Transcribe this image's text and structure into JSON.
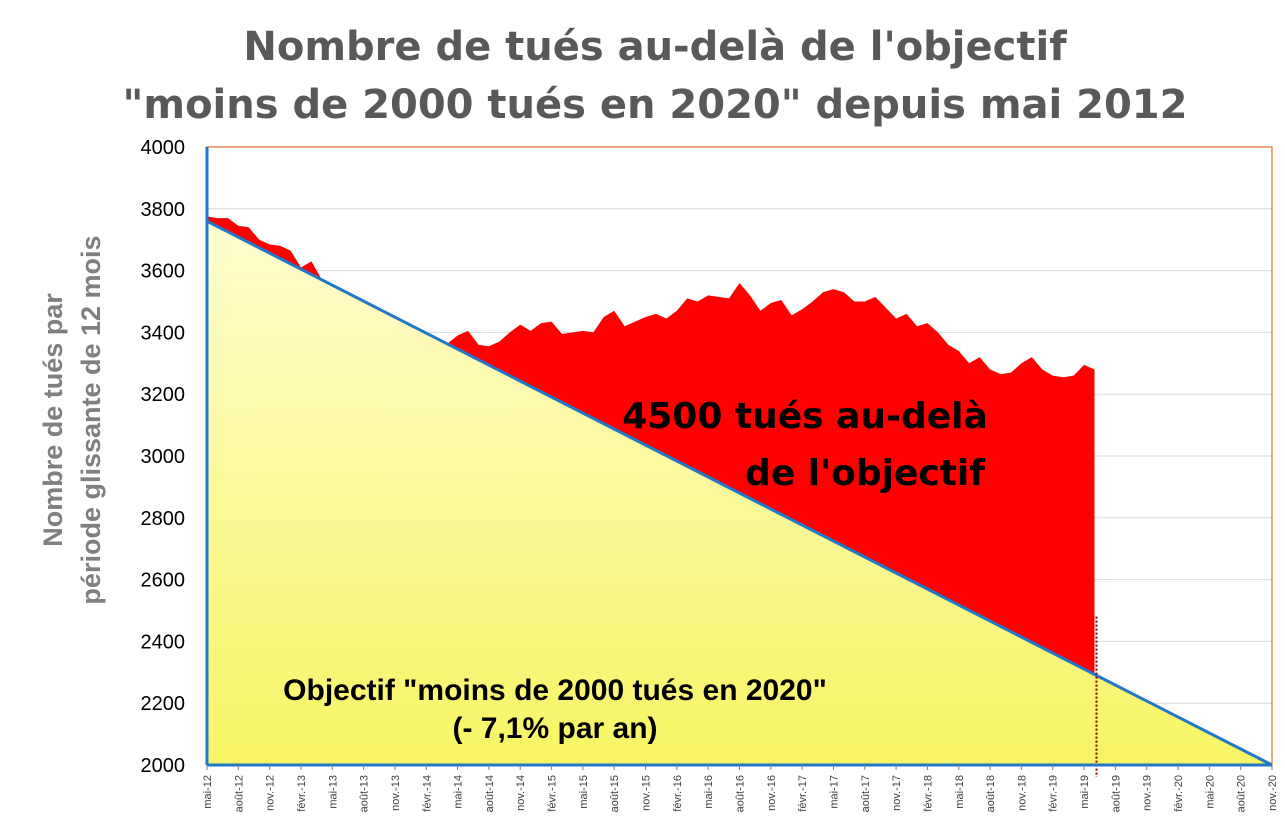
{
  "chart_data": {
    "type": "area",
    "title_lines": [
      "Nombre de tués au-delà de l'objectif",
      "\"moins de 2000 tués en 2020\" depuis mai 2012"
    ],
    "ylabel_lines": [
      "Nombre de tués par",
      "période  glissante de 12 mois"
    ],
    "xlabel": "",
    "ylim": [
      2000,
      4000
    ],
    "yticks": [
      2000,
      2200,
      2400,
      2600,
      2800,
      3000,
      3200,
      3400,
      3600,
      3800,
      4000
    ],
    "xticks": [
      "mai-12",
      "août-12",
      "nov.-12",
      "févr.-13",
      "mai-13",
      "août-13",
      "nov.-13",
      "févr.-14",
      "mai-14",
      "août-14",
      "nov.-14",
      "févr.-15",
      "mai-15",
      "août-15",
      "nov.-15",
      "févr.-16",
      "mai-16",
      "août-16",
      "nov.-16",
      "févr.-17",
      "mai-17",
      "août-17",
      "nov.-17",
      "févr.-18",
      "mai-18",
      "août-18",
      "nov.-18",
      "févr.-19",
      "mai-19",
      "août-19",
      "nov.-19",
      "févr.-20",
      "mai-20",
      "août-20",
      "nov.-20"
    ],
    "grid": true,
    "objective_line": {
      "start": {
        "x": "mai-12",
        "y": 3760
      },
      "end": {
        "x": "nov.-20",
        "y": 2000
      },
      "rate": "- 7,1% par an"
    },
    "series": [
      {
        "x_start": "mai-12",
        "step": "1 month",
        "values": [
          3775,
          3770,
          3770,
          3745,
          3740,
          3700,
          3685,
          3680,
          3665,
          3610,
          3630,
          3540,
          null,
          null,
          null,
          null,
          null,
          null,
          null,
          null,
          null,
          null,
          3320,
          3360,
          3390,
          3405,
          3360,
          3355,
          3370,
          3400,
          3425,
          3405,
          3430,
          3435,
          3395,
          3400,
          3405,
          3400,
          3450,
          3470,
          3420,
          3435,
          3450,
          3460,
          3445,
          3470,
          3510,
          3500,
          3520,
          3515,
          3510,
          3560,
          3520,
          3470,
          3495,
          3505,
          3455,
          3475,
          3500,
          3530,
          3540,
          3530,
          3500,
          3500,
          3515,
          3480,
          3445,
          3460,
          3420,
          3430,
          3400,
          3360,
          3340,
          3300,
          3320,
          3280,
          3265,
          3270,
          3300,
          3320,
          3280,
          3260,
          3255,
          3260,
          3295,
          3280
        ]
      }
    ],
    "cutoff_x": "oct.-19",
    "annotations": {
      "excess_line1": "4500 tués au-delà",
      "excess_line2": "de l'objectif",
      "objective_line1": "Objectif \"moins de 2000 tués en 2020\"",
      "objective_line2": "(- 7,1% par an)"
    },
    "colors": {
      "excess_fill": "#ff0000",
      "objective_line": "#1f78c8",
      "yellow_top": "#fffcd0",
      "yellow_bottom": "#f7f564",
      "plot_border": "#e06f1f",
      "grid": "#d9d9d9",
      "cutoff_marker": "#8b0000"
    }
  }
}
